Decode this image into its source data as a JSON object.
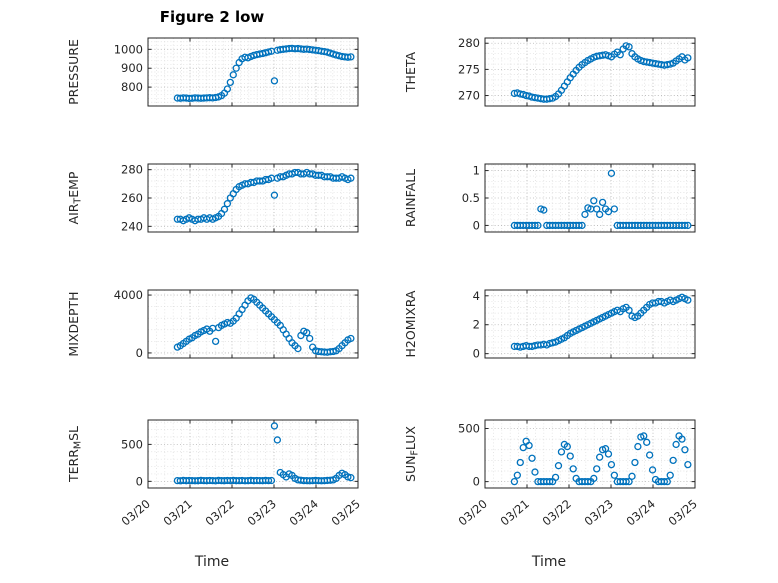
{
  "figure": {
    "title": "Figure 2 low",
    "xlabel": "Time",
    "marker_color": "#0072BD",
    "axis_color": "#262626",
    "grid": "on",
    "minor_grid": "on",
    "marker": "o",
    "xlim": [
      0,
      5
    ],
    "x_ticks": [
      0,
      1,
      2,
      3,
      4,
      5
    ],
    "x_tick_labels": [
      "03/20",
      "03/21",
      "03/22",
      "03/23",
      "03/24",
      "03/25"
    ]
  },
  "x_values": [
    0.7,
    0.77,
    0.84,
    0.91,
    0.98,
    1.05,
    1.12,
    1.19,
    1.26,
    1.33,
    1.4,
    1.47,
    1.54,
    1.61,
    1.68,
    1.75,
    1.82,
    1.89,
    1.96,
    2.03,
    2.1,
    2.17,
    2.24,
    2.31,
    2.38,
    2.45,
    2.52,
    2.59,
    2.66,
    2.73,
    2.8,
    2.87,
    2.94,
    3.01,
    3.08,
    3.15,
    3.22,
    3.29,
    3.36,
    3.43,
    3.5,
    3.57,
    3.64,
    3.71,
    3.78,
    3.85,
    3.92,
    3.99,
    4.06,
    4.13,
    4.2,
    4.27,
    4.34,
    4.41,
    4.48,
    4.55,
    4.62,
    4.69,
    4.76,
    4.83
  ],
  "chart_data": [
    {
      "type": "scatter",
      "ylabel": "PRESSURE",
      "ylabel_parts": [
        {
          "text": "PRESSURE",
          "sub": false
        }
      ],
      "yticks": [
        800,
        900,
        1000
      ],
      "ylim": [
        700,
        1060
      ],
      "y": [
        742,
        741,
        743,
        742,
        740,
        741,
        743,
        742,
        741,
        742,
        743,
        744,
        743,
        745,
        748,
        755,
        768,
        790,
        825,
        865,
        900,
        930,
        950,
        958,
        955,
        962,
        968,
        972,
        975,
        978,
        982,
        986,
        990,
        833,
        995,
        998,
        1000,
        1002,
        1004,
        1005,
        1003,
        1004,
        1002,
        1000,
        1001,
        999,
        997,
        995,
        993,
        990,
        988,
        985,
        980,
        975,
        970,
        966,
        962,
        960,
        958,
        960
      ]
    },
    {
      "type": "scatter",
      "ylabel": "THETA",
      "ylabel_parts": [
        {
          "text": "THETA",
          "sub": false
        }
      ],
      "yticks": [
        270,
        275,
        280
      ],
      "ylim": [
        268,
        281
      ],
      "y": [
        270.4,
        270.5,
        270.3,
        270.2,
        270.0,
        269.9,
        269.7,
        269.6,
        269.5,
        269.4,
        269.3,
        269.3,
        269.4,
        269.5,
        269.8,
        270.3,
        271.0,
        271.8,
        272.6,
        273.4,
        274.1,
        274.8,
        275.4,
        275.9,
        276.3,
        276.7,
        277.0,
        277.3,
        277.5,
        277.6,
        277.7,
        277.8,
        277.6,
        277.4,
        277.9,
        278.3,
        277.8,
        278.9,
        279.5,
        279.3,
        278.0,
        277.4,
        277.0,
        276.7,
        276.5,
        276.4,
        276.3,
        276.2,
        276.1,
        276.0,
        275.9,
        275.8,
        275.9,
        276.0,
        276.2,
        276.6,
        277.0,
        277.4,
        276.8,
        277.2
      ]
    },
    {
      "type": "scatter",
      "ylabel": "AIR_TEMP",
      "ylabel_parts": [
        {
          "text": "AIR",
          "sub": false
        },
        {
          "text": "T",
          "sub": true
        },
        {
          "text": "EMP",
          "sub": false
        }
      ],
      "yticks": [
        240,
        260,
        280
      ],
      "ylim": [
        236,
        284
      ],
      "y": [
        245,
        245,
        244,
        245,
        246,
        245,
        244,
        245,
        245,
        246,
        245,
        246,
        245,
        246,
        247,
        249,
        252,
        256,
        260,
        263,
        266,
        268,
        269,
        270,
        270,
        271,
        271,
        272,
        272,
        272,
        273,
        273,
        274,
        262,
        274,
        275,
        275,
        276,
        277,
        277,
        278,
        278,
        277,
        277,
        278,
        277,
        277,
        276,
        276,
        276,
        275,
        275,
        275,
        274,
        274,
        274,
        275,
        274,
        273,
        274
      ]
    },
    {
      "type": "scatter",
      "ylabel": "RAINFALL",
      "ylabel_parts": [
        {
          "text": "RAINFALL",
          "sub": false
        }
      ],
      "yticks": [
        0,
        0.5,
        1
      ],
      "ylim": [
        -0.12,
        1.12
      ],
      "y": [
        0,
        0,
        0,
        0,
        0,
        0,
        0,
        0,
        0,
        0.3,
        0.28,
        0,
        0,
        0,
        0,
        0,
        0,
        0,
        0,
        0,
        0,
        0,
        0,
        0,
        0.2,
        0.32,
        0.3,
        0.45,
        0.3,
        0.2,
        0.42,
        0.3,
        0.25,
        0.95,
        0.3,
        0,
        0,
        0,
        0,
        0,
        0,
        0,
        0,
        0,
        0,
        0,
        0,
        0,
        0,
        0,
        0,
        0,
        0,
        0,
        0,
        0,
        0,
        0,
        0,
        0
      ]
    },
    {
      "type": "scatter",
      "ylabel": "MIXDEPTH",
      "ylabel_parts": [
        {
          "text": "MIXDEPTH",
          "sub": false
        }
      ],
      "yticks": [
        0,
        4000
      ],
      "ylim": [
        -350,
        4350
      ],
      "y": [
        400,
        500,
        650,
        800,
        950,
        1050,
        1200,
        1300,
        1450,
        1550,
        1650,
        1500,
        1700,
        800,
        1750,
        1900,
        2000,
        2100,
        2050,
        2200,
        2400,
        2700,
        3000,
        3300,
        3600,
        3800,
        3700,
        3500,
        3300,
        3100,
        2900,
        2700,
        2500,
        2300,
        2100,
        1900,
        1600,
        1300,
        1000,
        700,
        500,
        300,
        1200,
        1500,
        1400,
        1000,
        400,
        150,
        100,
        80,
        60,
        50,
        80,
        100,
        150,
        300,
        500,
        700,
        900,
        1000
      ]
    },
    {
      "type": "scatter",
      "ylabel": "H2OMIXRA",
      "ylabel_parts": [
        {
          "text": "H2OMIXRA",
          "sub": false
        }
      ],
      "yticks": [
        0,
        2,
        4
      ],
      "ylim": [
        -0.3,
        4.4
      ],
      "y": [
        0.5,
        0.5,
        0.45,
        0.5,
        0.55,
        0.5,
        0.5,
        0.55,
        0.6,
        0.6,
        0.65,
        0.6,
        0.7,
        0.75,
        0.8,
        0.9,
        1.0,
        1.1,
        1.25,
        1.4,
        1.5,
        1.6,
        1.7,
        1.8,
        1.9,
        2.0,
        2.1,
        2.2,
        2.3,
        2.4,
        2.5,
        2.6,
        2.7,
        2.8,
        2.9,
        3.0,
        2.9,
        3.1,
        3.2,
        3.0,
        2.6,
        2.5,
        2.6,
        2.8,
        3.0,
        3.2,
        3.4,
        3.5,
        3.5,
        3.6,
        3.6,
        3.5,
        3.6,
        3.7,
        3.6,
        3.7,
        3.8,
        3.9,
        3.8,
        3.7
      ]
    },
    {
      "type": "scatter",
      "ylabel": "TERR_MSL",
      "ylabel_parts": [
        {
          "text": "TERR",
          "sub": false
        },
        {
          "text": "M",
          "sub": true
        },
        {
          "text": "SL",
          "sub": false
        }
      ],
      "yticks": [
        0,
        500
      ],
      "ylim": [
        -90,
        830
      ],
      "y": [
        10,
        8,
        12,
        9,
        11,
        10,
        8,
        9,
        12,
        10,
        9,
        11,
        10,
        8,
        12,
        10,
        9,
        11,
        10,
        12,
        9,
        10,
        11,
        8,
        10,
        12,
        9,
        11,
        10,
        9,
        12,
        10,
        11,
        750,
        560,
        120,
        90,
        60,
        100,
        80,
        40,
        20,
        15,
        10,
        10,
        8,
        10,
        12,
        10,
        8,
        10,
        12,
        15,
        20,
        40,
        80,
        110,
        90,
        60,
        50
      ]
    },
    {
      "type": "scatter",
      "ylabel": "SUN_FLUX",
      "ylabel_parts": [
        {
          "text": "SUN",
          "sub": false
        },
        {
          "text": "F",
          "sub": true
        },
        {
          "text": "LUX",
          "sub": false
        }
      ],
      "yticks": [
        0,
        500
      ],
      "ylim": [
        -60,
        580
      ],
      "y": [
        0,
        60,
        180,
        320,
        380,
        340,
        220,
        90,
        0,
        0,
        0,
        0,
        0,
        0,
        40,
        150,
        280,
        350,
        330,
        240,
        120,
        30,
        0,
        0,
        0,
        0,
        0,
        30,
        120,
        230,
        300,
        310,
        260,
        160,
        60,
        0,
        0,
        0,
        0,
        0,
        50,
        180,
        330,
        420,
        430,
        370,
        250,
        110,
        20,
        0,
        0,
        0,
        0,
        60,
        200,
        350,
        430,
        400,
        300,
        160
      ]
    }
  ]
}
